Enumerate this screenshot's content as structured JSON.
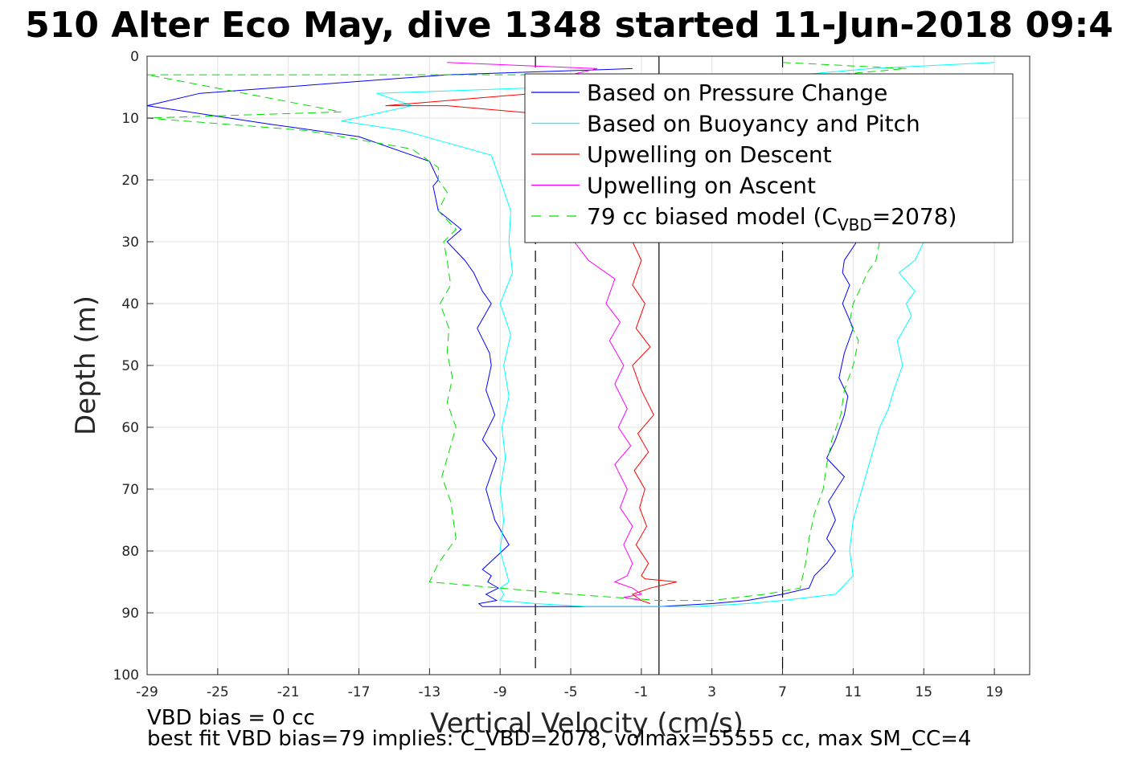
{
  "chart_data": {
    "type": "line",
    "title": "510 Alter Eco May, dive 1348 started 11-Jun-2018 09:4",
    "xlabel": "Vertical Velocity (cm/s)",
    "ylabel": "Depth (m)",
    "xlim": [
      -29,
      21
    ],
    "ylim": [
      0,
      100
    ],
    "y_reversed": true,
    "grid": true,
    "xticks": [
      -29,
      -25,
      -21,
      -17,
      -13,
      -9,
      -5,
      -1,
      3,
      7,
      11,
      15,
      19
    ],
    "yticks": [
      0,
      10,
      20,
      30,
      40,
      50,
      60,
      70,
      80,
      90,
      100
    ],
    "legend_position": "top-right",
    "legend": [
      {
        "label": "Based on Pressure Change",
        "color": "#0000ff",
        "dash": "solid"
      },
      {
        "label": "Based on Buoyancy and Pitch",
        "color": "#00ffff",
        "dash": "solid"
      },
      {
        "label": "Upwelling on Descent",
        "color": "#ff0000",
        "dash": "solid"
      },
      {
        "label": "Upwelling on Ascent",
        "color": "#ff00ff",
        "dash": "solid"
      },
      {
        "label": "79 cc biased model (C",
        "sub": "VBD",
        "suffix": "=2078)",
        "color": "#00dd00",
        "dash": "dashed"
      }
    ],
    "reference_lines": [
      {
        "x": -7,
        "style": "dashed",
        "color": "#000000"
      },
      {
        "x": 7,
        "style": "dashed",
        "color": "#000000"
      },
      {
        "x": 0,
        "style": "solid",
        "color": "#000000"
      }
    ],
    "series": [
      {
        "name": "Based on Pressure Change",
        "color": "#0000ff",
        "dash": "solid",
        "x": [
          -1.5,
          -12,
          -26,
          -29,
          -22,
          -17,
          -13,
          -12.5,
          -12.8,
          -12.5,
          -11.2,
          -12,
          -11,
          -10.5,
          -10,
          -9.5,
          -10.3,
          -9.6,
          -9.5,
          -9.8,
          -9.3,
          -10,
          -9.2,
          -9.8,
          -9.3,
          -8.5,
          -10,
          -9.5,
          -9.7,
          -9.1,
          -9.8,
          -9.2,
          -10.2,
          -10,
          -7,
          -4,
          -1.5,
          0,
          3,
          5,
          7,
          8.5,
          8.8,
          9.5,
          10,
          9.5,
          10,
          9.6,
          10.5,
          9.5,
          10,
          10.5,
          10.7,
          10.2,
          10.5,
          11,
          10.4,
          10.8,
          10.4,
          10.5,
          11.2,
          11.5,
          11.3
        ],
        "y": [
          2,
          3,
          6,
          8,
          11,
          13,
          17,
          20,
          21,
          25,
          28,
          30,
          33,
          35,
          38,
          40,
          44,
          48,
          50,
          54,
          58,
          62,
          65,
          70,
          75,
          79,
          83,
          84,
          85,
          86,
          87,
          88,
          88.5,
          89,
          89,
          89,
          89,
          89,
          88.5,
          88,
          87,
          86,
          84,
          82,
          80,
          78,
          75,
          72,
          68,
          65,
          62,
          58,
          55,
          52,
          48,
          44,
          40,
          37,
          35,
          33,
          30,
          28,
          25
        ]
      },
      {
        "name": "Based on Buoyancy and Pitch",
        "color": "#00ffff",
        "dash": "solid",
        "x": [
          19,
          12,
          4,
          -6,
          -16,
          -14,
          -18,
          -14.5,
          -12,
          -9.5,
          -9,
          -8.4,
          -8.5,
          -8.3,
          -9,
          -8.4,
          -8.8,
          -8.5,
          -8.9,
          -8.7,
          -9,
          -8.8,
          -9,
          -8.6,
          -8.5,
          -9,
          -8.8,
          -9,
          -7,
          -4,
          -1,
          2,
          5,
          7,
          10,
          11,
          10.8,
          11,
          11.5,
          12,
          12.5,
          13,
          13.3,
          13.8,
          13.5,
          14.3,
          14,
          14.5,
          13.6,
          14.5,
          15,
          15.5,
          16,
          17
        ],
        "y": [
          1,
          2,
          4,
          5,
          6,
          8,
          10.5,
          12,
          14,
          16,
          20,
          25,
          30,
          35,
          40,
          45,
          50,
          55,
          60,
          65,
          70,
          75,
          80,
          84,
          85,
          86,
          87,
          88,
          88.5,
          89,
          89,
          89,
          88.5,
          88,
          87,
          84,
          80,
          75,
          70,
          65,
          60,
          57,
          54,
          50,
          46,
          42,
          40,
          38,
          35,
          33,
          30,
          27,
          22,
          15
        ]
      },
      {
        "name": "Upwelling on Descent",
        "color": "#ff0000",
        "dash": "solid",
        "x": [
          -7,
          -15.5,
          -12,
          -4,
          -1.5,
          -1,
          -1.5,
          -0.8,
          -1.3,
          -0.5,
          -1.5,
          -1,
          -0.3,
          -1.2,
          -0.6,
          -1.4,
          -0.8,
          -1.1,
          -0.7,
          -1.3,
          -0.6,
          -1,
          -0.8,
          1,
          -0.5,
          -1.5,
          -1,
          -0.5
        ],
        "y": [
          6,
          8,
          8,
          10,
          30,
          33,
          37,
          40,
          44,
          47,
          50,
          54,
          58,
          61,
          64,
          67,
          70,
          73,
          76,
          79,
          82,
          84,
          84.5,
          85,
          86,
          87,
          88,
          88.5
        ]
      },
      {
        "name": "Upwelling on Ascent",
        "color": "#ff00ff",
        "dash": "solid",
        "x": [
          -12,
          -3.5,
          -5,
          -5,
          -4.8,
          -4,
          -2.5,
          -3,
          -2.2,
          -2.8,
          -2,
          -2.5,
          -1.8,
          -2.3,
          -1.6,
          -2.5,
          -1.8,
          -2.2,
          -1.5,
          -2,
          -1.5,
          -1.8,
          -2.5,
          -1.5,
          -1,
          -2,
          -1
        ],
        "y": [
          1,
          2,
          3,
          5,
          30,
          33,
          36,
          40,
          43,
          46,
          50,
          53,
          57,
          60,
          63,
          66,
          70,
          73,
          76,
          79,
          82,
          84,
          85,
          86,
          87,
          87.5,
          88
        ]
      },
      {
        "name": "79 cc biased model (CVBD=2078)",
        "color": "#00dd00",
        "dash": "dashed",
        "x": [
          7,
          14,
          10,
          -29,
          -18,
          -29,
          -20,
          -14,
          -12.5,
          -12.5,
          -12,
          -12.5,
          -11.5,
          -12.2,
          -12,
          -11.8,
          -12.4,
          -11.9,
          -12,
          -11.7,
          -12,
          -11.5,
          -12,
          -12.3,
          -11.8,
          -11.5,
          -12.5,
          -13,
          -9,
          -5,
          0,
          3,
          6,
          8,
          8.3,
          8.5,
          8.8,
          9.3,
          9.5,
          9.8,
          10.3,
          10.5,
          11,
          11.3,
          10.8,
          11,
          11.5,
          11.8,
          12.3,
          12.5,
          13,
          13.5,
          14.5,
          15,
          16
        ],
        "y": [
          1,
          2,
          3,
          3,
          9,
          10,
          12,
          15,
          18,
          20,
          22,
          25,
          28,
          30,
          33,
          37,
          40,
          44,
          48,
          52,
          56,
          60,
          65,
          68,
          72,
          78,
          82,
          85,
          86,
          87,
          88,
          88,
          87,
          86,
          82,
          78,
          74,
          70,
          66,
          62,
          58,
          54,
          50,
          46,
          43,
          40,
          37,
          35,
          33,
          30,
          27,
          25,
          22,
          18,
          14
        ]
      }
    ]
  },
  "footer": {
    "line1": "VBD bias = 0 cc",
    "line2": "best fit VBD bias=79 implies: C_VBD=2078, volmax=55555 cc, max SM_CC=4"
  }
}
